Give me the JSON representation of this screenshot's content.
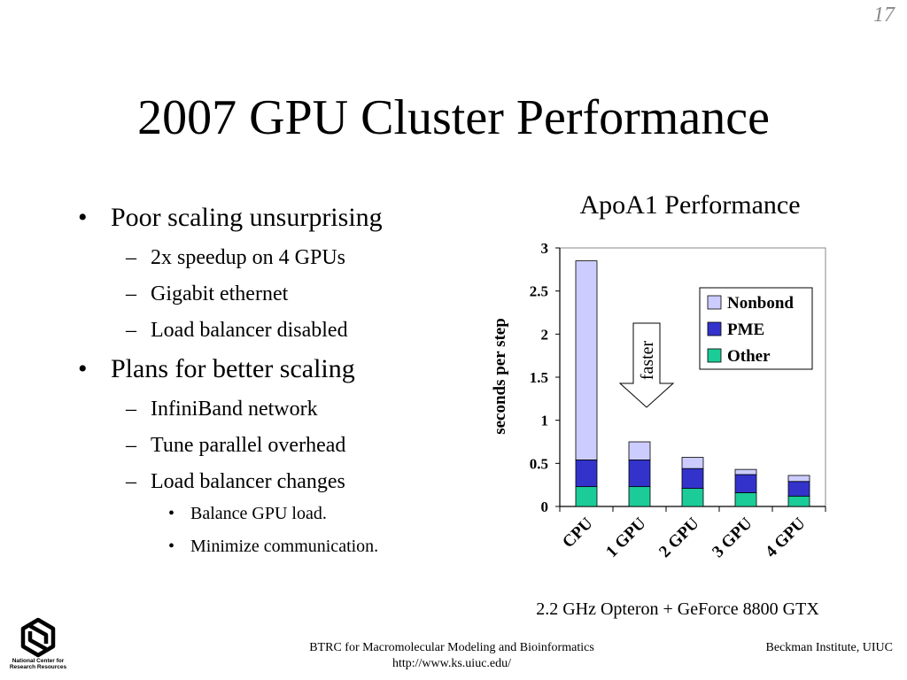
{
  "slide_number": "17",
  "title": "2007 GPU Cluster Performance",
  "bullets": [
    {
      "label": "Poor scaling unsurprising",
      "children": [
        {
          "label": "2x speedup on 4 GPUs"
        },
        {
          "label": "Gigabit ethernet"
        },
        {
          "label": "Load balancer disabled"
        }
      ]
    },
    {
      "label": "Plans for better scaling",
      "children": [
        {
          "label": "InfiniBand network"
        },
        {
          "label": "Tune parallel overhead"
        },
        {
          "label": "Load balancer changes",
          "children": [
            {
              "label": "Balance GPU load."
            },
            {
              "label": "Minimize communication."
            }
          ]
        }
      ]
    }
  ],
  "chart_data": {
    "type": "bar",
    "stacked": true,
    "title": "ApoA1 Performance",
    "ylabel": "seconds per step",
    "xlabel": "",
    "caption": "2.2 GHz Opteron + GeForce 8800 GTX",
    "categories": [
      "CPU",
      "1 GPU",
      "2 GPU",
      "3 GPU",
      "4 GPU"
    ],
    "ylim": [
      0,
      3
    ],
    "yticks": [
      0,
      0.5,
      1,
      1.5,
      2,
      2.5,
      3
    ],
    "ytick_labels": [
      "0",
      "0.5",
      "1",
      "1.5",
      "2",
      "2.5",
      "3"
    ],
    "series": [
      {
        "name": "Other",
        "color": "#1ccc98",
        "values": [
          0.23,
          0.23,
          0.21,
          0.16,
          0.12
        ]
      },
      {
        "name": "PME",
        "color": "#3333cc",
        "values": [
          0.31,
          0.31,
          0.23,
          0.21,
          0.17
        ]
      },
      {
        "name": "Nonbond",
        "color": "#ccccff",
        "values": [
          2.31,
          0.21,
          0.13,
          0.06,
          0.07
        ]
      }
    ],
    "legend": {
      "position": "top-right",
      "order": [
        "Nonbond",
        "PME",
        "Other"
      ]
    },
    "annotation": {
      "text": "faster",
      "shape": "down-arrow"
    },
    "grid": false
  },
  "footer": {
    "center_line1": "BTRC for Macromolecular Modeling and Bioinformatics",
    "center_line2": "http://www.ks.uiuc.edu/",
    "right": "Beckman Institute, UIUC"
  },
  "logo": {
    "icon": "ncrr-logo-icon",
    "line1": "National Center for",
    "line2": "Research Resources"
  }
}
